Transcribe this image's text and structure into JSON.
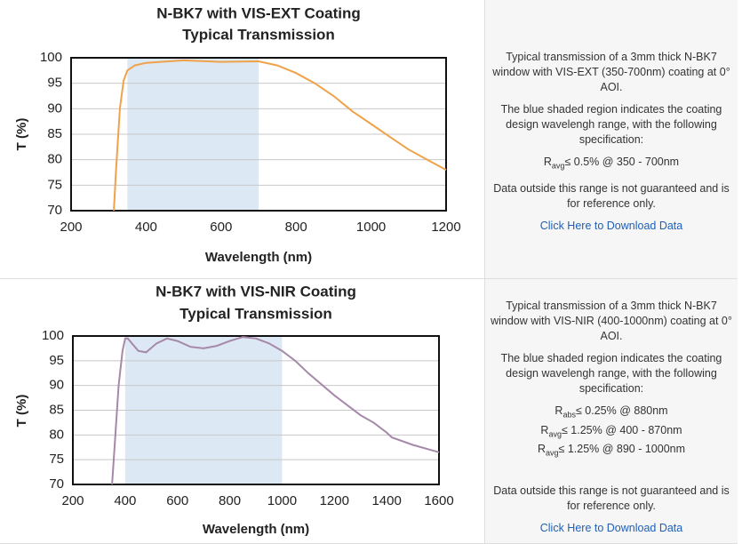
{
  "chart_data": [
    {
      "type": "line",
      "title": "N-BK7 with VIS-EXT Coating",
      "subtitle": "Typical Transmission",
      "x_label": "Wavelength (nm)",
      "y_label": "T (%)",
      "x": [
        314,
        320,
        330,
        340,
        350,
        370,
        400,
        500,
        600,
        700,
        750,
        800,
        850,
        900,
        950,
        1000,
        1050,
        1100,
        1150,
        1200
      ],
      "values": [
        70,
        78,
        90,
        95.5,
        97.5,
        98.5,
        99,
        99.5,
        99.2,
        99.3,
        98.5,
        97,
        95,
        92.5,
        89.5,
        87,
        84.5,
        82,
        80,
        78
      ],
      "color": "#f0a24a",
      "band": [
        350,
        700
      ],
      "band_color": "#dce9f5",
      "xlim": [
        200,
        1200
      ],
      "xticks": [
        200,
        400,
        600,
        800,
        1000,
        1200
      ],
      "ylim": [
        70,
        100
      ],
      "yticks": [
        70,
        75,
        80,
        85,
        90,
        95,
        100
      ],
      "grid": true
    },
    {
      "type": "line",
      "title": "N-BK7 with VIS-NIR Coating",
      "subtitle": "Typical Transmission",
      "x_label": "Wavelength (nm)",
      "y_label": "T (%)",
      "x": [
        350,
        360,
        375,
        390,
        400,
        410,
        450,
        480,
        520,
        560,
        600,
        650,
        700,
        750,
        800,
        850,
        900,
        950,
        1000,
        1050,
        1100,
        1200,
        1300,
        1350,
        1400,
        1420,
        1500,
        1600
      ],
      "values": [
        70,
        78,
        90,
        97,
        99.5,
        99.5,
        97,
        96.7,
        98.5,
        99.5,
        99,
        97.8,
        97.5,
        98,
        99,
        99.8,
        99.5,
        98.5,
        97,
        95,
        92.5,
        88,
        84,
        82.5,
        80.5,
        79.5,
        78,
        76.5
      ],
      "color": "#a688a9",
      "band": [
        400,
        1000
      ],
      "band_color": "#dce9f5",
      "xlim": [
        200,
        1600
      ],
      "xticks": [
        200,
        400,
        600,
        800,
        1000,
        1200,
        1400,
        1600
      ],
      "ylim": [
        70,
        100
      ],
      "yticks": [
        70,
        75,
        80,
        85,
        90,
        95,
        100
      ],
      "grid": true
    }
  ],
  "panels": [
    {
      "description": "Typical transmission of a 3mm thick N-BK7 window with VIS-EXT (350-700nm) coating at 0° AOI.",
      "shading_note": "The blue shaded region indicates the coating design wavelengh range, with the following specification:",
      "specs": [
        {
          "symbol": "R",
          "sub": "avg",
          "text": "≤ 0.5% @ 350 - 700nm"
        }
      ],
      "disclaimer": "Data outside this range is not guaranteed and is for reference only.",
      "link": "Click Here to Download Data"
    },
    {
      "description": "Typical transmission of a 3mm thick N-BK7 window with VIS-NIR (400-1000nm) coating at 0° AOI.",
      "shading_note": "The blue shaded region indicates the coating design wavelengh range, with the following specification:",
      "specs": [
        {
          "symbol": "R",
          "sub": "abs",
          "text": "≤ 0.25% @ 880nm"
        },
        {
          "symbol": "R",
          "sub": "avg",
          "text": "≤ 1.25% @ 400 - 870nm"
        },
        {
          "symbol": "R",
          "sub": "avg",
          "text": "≤ 1.25% @ 890 - 1000nm"
        }
      ],
      "disclaimer": "Data outside this range is not guaranteed and is for reference only.",
      "link": "Click Here to Download Data"
    }
  ]
}
